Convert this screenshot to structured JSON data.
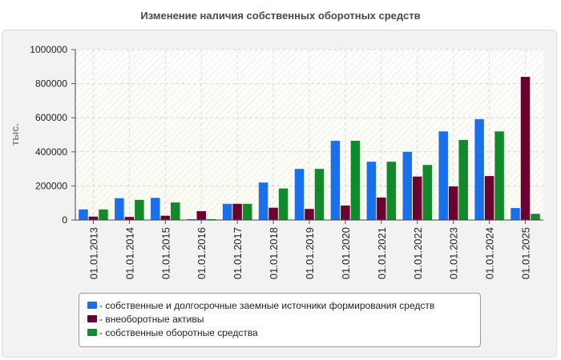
{
  "chart_data": {
    "type": "bar",
    "title": "Изменение наличия собственных оборотных средств",
    "xlabel": "",
    "ylabel": "тыс.",
    "ylim": [
      0,
      1000000
    ],
    "yticks": [
      "0",
      "200000",
      "400000",
      "600000",
      "800000",
      "1000000"
    ],
    "ytick_values": [
      0,
      200000,
      400000,
      600000,
      800000,
      1000000
    ],
    "grid": true,
    "legend_position": "bottom",
    "categories": [
      "01.01.2013",
      "01.01.2014",
      "01.01.2015",
      "01.01.2016",
      "01.01.2017",
      "01.01.2018",
      "01.01.2019",
      "01.01.2020",
      "01.01.2021",
      "01.01.2022",
      "01.01.2023",
      "01.01.2024",
      "01.01.2025"
    ],
    "series": [
      {
        "name": "- собственные и долгосрочные заемные источники формирования средств",
        "color": "#1a6fea",
        "values": [
          62000,
          128000,
          130000,
          5000,
          95000,
          220000,
          300000,
          465000,
          342000,
          400000,
          520000,
          592000,
          70000
        ]
      },
      {
        "name": "- внеоборотные активы",
        "color": "#6b0030",
        "values": [
          20000,
          18000,
          25000,
          52000,
          95000,
          72000,
          65000,
          85000,
          132000,
          255000,
          197000,
          258000,
          840000
        ]
      },
      {
        "name": "- собственные оборотные средства",
        "color": "#108a2a",
        "values": [
          62000,
          118000,
          103000,
          5000,
          95000,
          185000,
          300000,
          465000,
          342000,
          323000,
          470000,
          520000,
          36000
        ]
      }
    ]
  }
}
